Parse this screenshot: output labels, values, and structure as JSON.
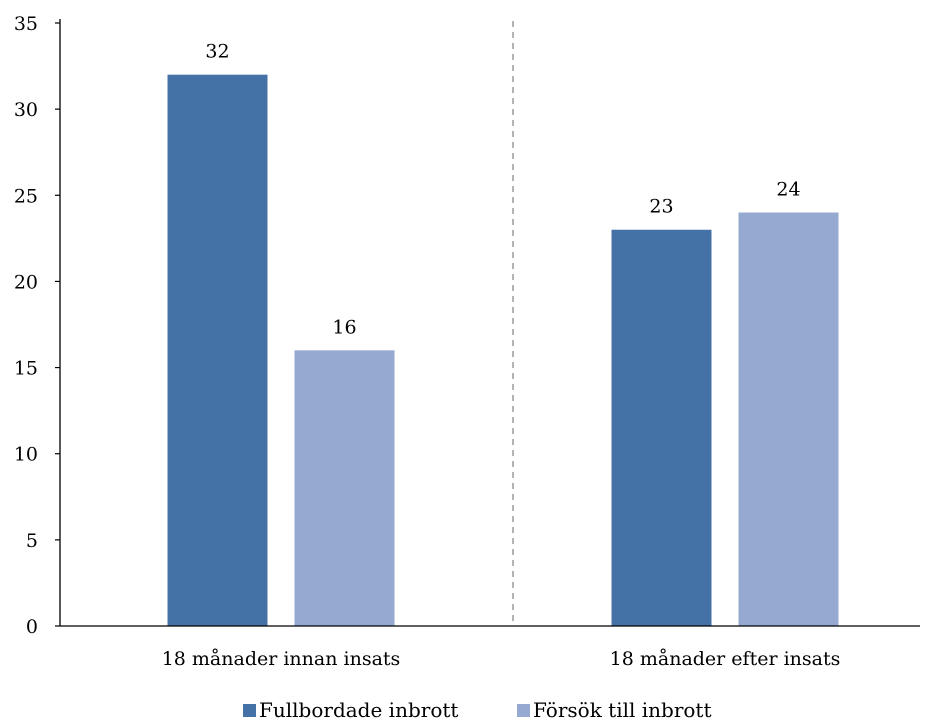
{
  "chart_data": {
    "type": "bar",
    "categories": [
      "18 månader innan insats",
      "18 månader efter insats"
    ],
    "series": [
      {
        "name": "Fullbordade inbrott",
        "values": [
          32,
          23
        ],
        "color": "#4472a7"
      },
      {
        "name": "Försök till inbrott",
        "values": [
          16,
          24
        ],
        "color": "#95a9d1"
      }
    ],
    "title": "",
    "xlabel": "",
    "ylabel": "",
    "ylim": [
      0,
      35
    ],
    "yticks": [
      0,
      5,
      10,
      15,
      20,
      25,
      30,
      35
    ],
    "grid": false,
    "legend_position": "bottom",
    "separator": "dashed-between-categories",
    "data_labels": true
  }
}
